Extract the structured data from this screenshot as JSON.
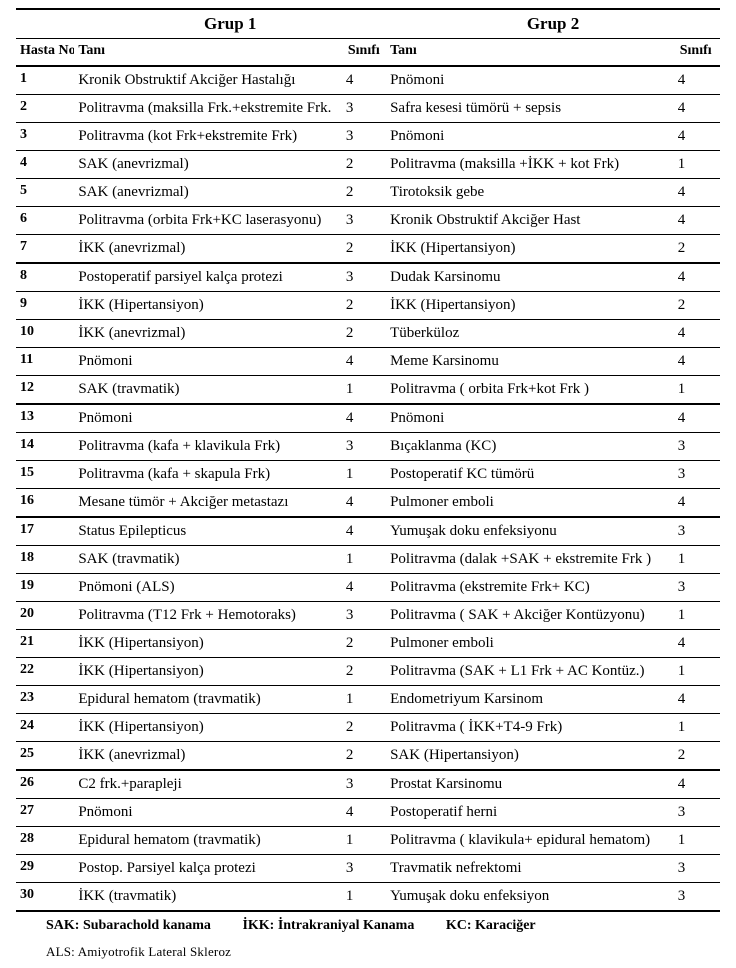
{
  "headers": {
    "group1": "Grup 1",
    "group2": "Grup 2",
    "hastaNo": "Hasta No",
    "tani": "Tanı",
    "sinif": "Sınıfı"
  },
  "legend": {
    "sak": "SAK: Subarachold kanama",
    "ikk": "İKK: İntrakraniyal Kanama",
    "kc": "KC: Karaciğer",
    "als": "ALS: Amiyotrofik Lateral Skleroz"
  },
  "rows": [
    {
      "no": "1",
      "t1": "Kronik Obstruktif Akciğer Hastalığı",
      "s1": "4",
      "t2": "Pnömoni",
      "s2": "4",
      "heavy": false
    },
    {
      "no": "2",
      "t1": "Politravma (maksilla Frk.+ekstremite Frk.",
      "s1": "3",
      "t2": "Safra kesesi tümörü + sepsis",
      "s2": "4",
      "heavy": false
    },
    {
      "no": "3",
      "t1": "Politravma (kot Frk+ekstremite Frk)",
      "s1": "3",
      "t2": "Pnömoni",
      "s2": "4",
      "heavy": false
    },
    {
      "no": "4",
      "t1": "SAK (anevrizmal)",
      "s1": "2",
      "t2": "Politravma (maksilla +İKK + kot Frk)",
      "s2": "1",
      "heavy": false
    },
    {
      "no": "5",
      "t1": "SAK (anevrizmal)",
      "s1": "2",
      "t2": "Tirotoksik gebe",
      "s2": "4",
      "heavy": false
    },
    {
      "no": "6",
      "t1": "Politravma (orbita Frk+KC laserasyonu)",
      "s1": "3",
      "t2": "Kronik Obstruktif Akciğer Hast",
      "s2": "4",
      "heavy": false
    },
    {
      "no": "7",
      "t1": "İKK (anevrizmal)",
      "s1": "2",
      "t2": "İKK (Hipertansiyon)",
      "s2": "2",
      "heavy": true
    },
    {
      "no": "8",
      "t1": "Postoperatif parsiyel kalça protezi",
      "s1": "3",
      "t2": "Dudak Karsinomu",
      "s2": "4",
      "heavy": false
    },
    {
      "no": "9",
      "t1": "İKK (Hipertansiyon)",
      "s1": "2",
      "t2": "İKK (Hipertansiyon)",
      "s2": "2",
      "heavy": false
    },
    {
      "no": "10",
      "t1": "İKK (anevrizmal)",
      "s1": "2",
      "t2": "Tüberküloz",
      "s2": "4",
      "heavy": false
    },
    {
      "no": "11",
      "t1": "Pnömoni",
      "s1": "4",
      "t2": "Meme Karsinomu",
      "s2": "4",
      "heavy": false
    },
    {
      "no": "12",
      "t1": "SAK (travmatik)",
      "s1": "1",
      "t2": "Politravma ( orbita Frk+kot Frk )",
      "s2": "1",
      "heavy": true
    },
    {
      "no": "13",
      "t1": "Pnömoni",
      "s1": "4",
      "t2": "Pnömoni",
      "s2": "4",
      "heavy": false
    },
    {
      "no": "14",
      "t1": "Politravma (kafa + klavikula Frk)",
      "s1": "3",
      "t2": "Bıçaklanma (KC)",
      "s2": "3",
      "heavy": false
    },
    {
      "no": "15",
      "t1": "Politravma (kafa + skapula Frk)",
      "s1": "1",
      "t2": "Postoperatif KC tümörü",
      "s2": "3",
      "heavy": false
    },
    {
      "no": "16",
      "t1": "Mesane tümör + Akciğer metastazı",
      "s1": "4",
      "t2": "Pulmoner emboli",
      "s2": "4",
      "heavy": true
    },
    {
      "no": "17",
      "t1": "Status Epilepticus",
      "s1": "4",
      "t2": "Yumuşak doku enfeksiyonu",
      "s2": "3",
      "heavy": false
    },
    {
      "no": "18",
      "t1": "SAK (travmatik)",
      "s1": "1",
      "t2": "Politravma (dalak +SAK + ekstremite Frk )",
      "s2": "1",
      "heavy": false
    },
    {
      "no": "19",
      "t1": "Pnömoni (ALS)",
      "s1": "4",
      "t2": "Politravma (ekstremite Frk+ KC)",
      "s2": "3",
      "heavy": false
    },
    {
      "no": "20",
      "t1": "Politravma (T12 Frk + Hemotoraks)",
      "s1": "3",
      "t2": "Politravma ( SAK + Akciğer Kontüzyonu)",
      "s2": "1",
      "heavy": false
    },
    {
      "no": "21",
      "t1": "İKK (Hipertansiyon)",
      "s1": "2",
      "t2": "Pulmoner emboli",
      "s2": "4",
      "heavy": false
    },
    {
      "no": "22",
      "t1": "İKK (Hipertansiyon)",
      "s1": "2",
      "t2": "Politravma (SAK + L1 Frk + AC Kontüz.)",
      "s2": "1",
      "heavy": false
    },
    {
      "no": "23",
      "t1": "Epidural hematom (travmatik)",
      "s1": "1",
      "t2": "Endometriyum Karsinom",
      "s2": "4",
      "heavy": false
    },
    {
      "no": "24",
      "t1": "İKK (Hipertansiyon)",
      "s1": "2",
      "t2": "Politravma ( İKK+T4-9 Frk)",
      "s2": "1",
      "heavy": false
    },
    {
      "no": "25",
      "t1": "İKK (anevrizmal)",
      "s1": "2",
      "t2": "SAK (Hipertansiyon)",
      "s2": "2",
      "heavy": true
    },
    {
      "no": "26",
      "t1": "C2 frk.+parapleji",
      "s1": "3",
      "t2": "Prostat Karsinomu",
      "s2": "4",
      "heavy": false
    },
    {
      "no": "27",
      "t1": "Pnömoni",
      "s1": "4",
      "t2": "Postoperatif herni",
      "s2": "3",
      "heavy": false
    },
    {
      "no": "28",
      "t1": "Epidural hematom (travmatik)",
      "s1": "1",
      "t2": "Politravma ( klavikula+ epidural hematom)",
      "s2": "1",
      "heavy": false
    },
    {
      "no": "29",
      "t1": "Postop. Parsiyel kalça protezi",
      "s1": "3",
      "t2": "Travmatik nefrektomi",
      "s2": "3",
      "heavy": false
    },
    {
      "no": "30",
      "t1": "İKK (travmatik)",
      "s1": "1",
      "t2": "Yumuşak doku enfeksiyon",
      "s2": "3",
      "heavy": true
    }
  ]
}
